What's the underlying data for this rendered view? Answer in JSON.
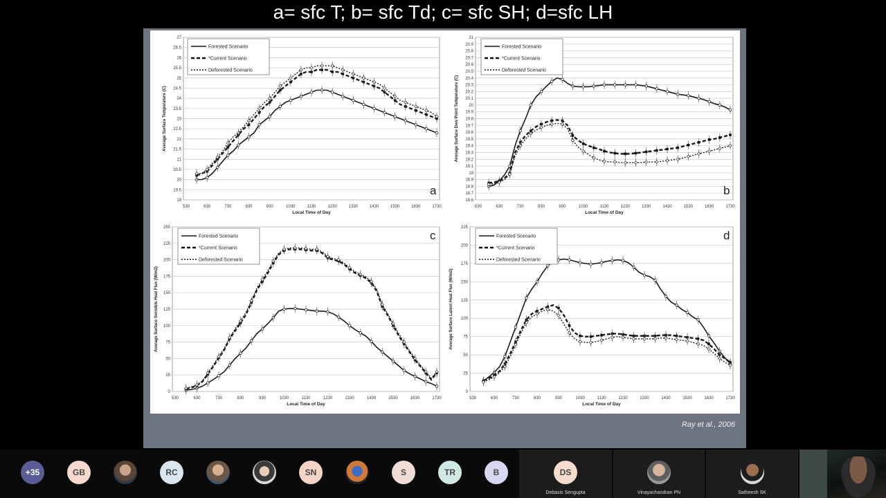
{
  "slide": {
    "title": "a= sfc T; b= sfc Td; c= sfc SH; d=sfc LH",
    "citation": "Ray et al., 2006"
  },
  "legend_labels": [
    "Forested Scenario",
    "*Current Scenario",
    "Deforested Scenario"
  ],
  "chart_data": [
    {
      "type": "line",
      "panel_label": "a",
      "xlabel": "Local Time of Day",
      "ylabel": "Average Surface Temperature (C)",
      "x_tick_labels": [
        "530",
        "630",
        "730",
        "830",
        "930",
        "1030",
        "1130",
        "1230",
        "1330",
        "1430",
        "1530",
        "1630",
        "1730"
      ],
      "y_tick_labels": [
        "19",
        "19.5",
        "20",
        "20.5",
        "21",
        "21.5",
        "22",
        "22.5",
        "23",
        "23.5",
        "24",
        "24.5",
        "25",
        "25.5",
        "26",
        "26.5",
        "27"
      ],
      "ylim": [
        19,
        27
      ],
      "x_hours": [
        6,
        6.25,
        6.5,
        6.75,
        7,
        7.25,
        7.5,
        7.75,
        8,
        8.25,
        8.5,
        8.75,
        9,
        9.25,
        9.5,
        9.75,
        10,
        10.25,
        10.5,
        10.75,
        11,
        11.25,
        11.5,
        11.75,
        12,
        12.25,
        12.5,
        12.75,
        13,
        13.25,
        13.5,
        13.75,
        14,
        14.25,
        14.5,
        14.75,
        15,
        15.25,
        15.5,
        15.75,
        16,
        16.25,
        16.5,
        16.75,
        17,
        17.25,
        17.5
      ],
      "series": [
        {
          "name": "Forested Scenario",
          "style": "solid-open",
          "values": [
            20.0,
            20.0,
            20.1,
            20.3,
            20.6,
            20.9,
            21.2,
            21.4,
            21.7,
            21.9,
            22.1,
            22.3,
            22.7,
            22.9,
            23.1,
            23.4,
            23.6,
            23.8,
            23.9,
            24.0,
            24.1,
            24.2,
            24.3,
            24.4,
            24.4,
            24.4,
            24.3,
            24.2,
            24.1,
            24.0,
            23.9,
            23.8,
            23.7,
            23.6,
            23.5,
            23.4,
            23.3,
            23.2,
            23.1,
            23.0,
            22.9,
            22.8,
            22.7,
            22.6,
            22.5,
            22.4,
            22.3
          ]
        },
        {
          "name": "*Current Scenario",
          "style": "dashed-filled",
          "values": [
            20.2,
            20.3,
            20.4,
            20.7,
            21.0,
            21.3,
            21.6,
            21.9,
            22.2,
            22.5,
            22.7,
            23.0,
            23.3,
            23.6,
            23.8,
            24.1,
            24.4,
            24.6,
            24.8,
            25.0,
            25.2,
            25.3,
            25.3,
            25.4,
            25.4,
            25.4,
            25.3,
            25.3,
            25.2,
            25.1,
            25.0,
            24.9,
            24.8,
            24.7,
            24.6,
            24.5,
            24.3,
            24.1,
            23.9,
            23.7,
            23.6,
            23.5,
            23.4,
            23.3,
            23.2,
            23.1,
            23.0
          ]
        },
        {
          "name": "Deforested Scenario",
          "style": "dotted-diamond",
          "values": [
            20.3,
            20.3,
            20.5,
            20.8,
            21.1,
            21.4,
            21.8,
            22.1,
            22.3,
            22.6,
            22.9,
            23.2,
            23.5,
            23.8,
            24.0,
            24.3,
            24.6,
            24.8,
            25.0,
            25.2,
            25.4,
            25.5,
            25.5,
            25.6,
            25.6,
            25.6,
            25.6,
            25.5,
            25.4,
            25.3,
            25.2,
            25.1,
            25.0,
            24.9,
            24.8,
            24.7,
            24.5,
            24.3,
            24.1,
            23.9,
            23.8,
            23.7,
            23.6,
            23.5,
            23.4,
            23.3,
            23.1
          ]
        }
      ]
    },
    {
      "type": "line",
      "panel_label": "b",
      "xlabel": "Local Time of Day",
      "ylabel": "Average Surface Dew Point Temperature (C)",
      "x_tick_labels": [
        "530",
        "630",
        "730",
        "830",
        "930",
        "1030",
        "1130",
        "1230",
        "1330",
        "1430",
        "1530",
        "1630",
        "1730"
      ],
      "y_tick_labels": [
        "18.6",
        "18.7",
        "18.8",
        "18.9",
        "19",
        "19.1",
        "19.2",
        "19.3",
        "19.4",
        "19.5",
        "19.6",
        "19.7",
        "19.8",
        "19.9",
        "20",
        "20.1",
        "20.2",
        "20.3",
        "20.4",
        "20.5",
        "20.6",
        "20.7",
        "20.8",
        "20.9",
        "21"
      ],
      "ylim": [
        18.6,
        21.0
      ],
      "x_hours": [
        6,
        6.25,
        6.5,
        6.75,
        7,
        7.25,
        7.5,
        7.75,
        8,
        8.25,
        8.5,
        8.75,
        9,
        9.25,
        9.5,
        9.75,
        10,
        10.25,
        10.5,
        10.75,
        11,
        11.25,
        11.5,
        11.75,
        12,
        12.25,
        12.5,
        12.75,
        13,
        13.25,
        13.5,
        13.75,
        14,
        14.25,
        14.5,
        14.75,
        15,
        15.25,
        15.5,
        15.75,
        16,
        16.25,
        16.5,
        16.75,
        17,
        17.25,
        17.5
      ],
      "series": [
        {
          "name": "Forested Scenario",
          "style": "solid-open",
          "values": [
            18.8,
            18.82,
            18.88,
            18.97,
            19.1,
            19.4,
            19.62,
            19.8,
            20.0,
            20.12,
            20.2,
            20.28,
            20.35,
            20.4,
            20.38,
            20.32,
            20.28,
            20.27,
            20.27,
            20.27,
            20.28,
            20.29,
            20.3,
            20.3,
            20.3,
            20.3,
            20.3,
            20.3,
            20.3,
            20.29,
            20.28,
            20.26,
            20.24,
            20.22,
            20.2,
            20.18,
            20.16,
            20.15,
            20.14,
            20.12,
            20.1,
            20.08,
            20.05,
            20.02,
            20.0,
            19.97,
            19.93
          ]
        },
        {
          "name": "*Current Scenario",
          "style": "dashed-filled",
          "values": [
            18.85,
            18.86,
            18.88,
            18.92,
            19.0,
            19.3,
            19.45,
            19.55,
            19.62,
            19.68,
            19.72,
            19.75,
            19.77,
            19.78,
            19.77,
            19.7,
            19.55,
            19.48,
            19.43,
            19.4,
            19.37,
            19.35,
            19.32,
            19.3,
            19.29,
            19.28,
            19.28,
            19.28,
            19.29,
            19.3,
            19.31,
            19.32,
            19.33,
            19.34,
            19.35,
            19.36,
            19.37,
            19.39,
            19.41,
            19.43,
            19.45,
            19.47,
            19.49,
            19.5,
            19.52,
            19.54,
            19.56
          ]
        },
        {
          "name": "Deforested Scenario",
          "style": "dotted-diamond",
          "values": [
            18.83,
            18.84,
            18.86,
            18.9,
            18.98,
            19.25,
            19.4,
            19.5,
            19.58,
            19.63,
            19.67,
            19.7,
            19.72,
            19.73,
            19.72,
            19.65,
            19.48,
            19.38,
            19.32,
            19.27,
            19.22,
            19.19,
            19.17,
            19.16,
            19.16,
            19.15,
            19.15,
            19.15,
            19.15,
            19.15,
            19.16,
            19.16,
            19.16,
            19.17,
            19.18,
            19.19,
            19.2,
            19.22,
            19.24,
            19.26,
            19.28,
            19.3,
            19.32,
            19.34,
            19.36,
            19.38,
            19.4
          ]
        }
      ]
    },
    {
      "type": "line",
      "panel_label": "c",
      "xlabel": "Local Time of Day",
      "ylabel": "Average Surface Sensible Heat Flux (W/m2)",
      "x_tick_labels": [
        "530",
        "630",
        "730",
        "830",
        "930",
        "1030",
        "1130",
        "1230",
        "1330",
        "1430",
        "1530",
        "1630",
        "1730"
      ],
      "y_tick_labels": [
        "0",
        "25",
        "50",
        "75",
        "100",
        "125",
        "150",
        "175",
        "200",
        "225",
        "250"
      ],
      "ylim": [
        0,
        250
      ],
      "x_hours": [
        6,
        6.25,
        6.5,
        6.75,
        7,
        7.25,
        7.5,
        7.75,
        8,
        8.25,
        8.5,
        8.75,
        9,
        9.25,
        9.5,
        9.75,
        10,
        10.25,
        10.5,
        10.75,
        11,
        11.25,
        11.5,
        11.75,
        12,
        12.25,
        12.5,
        12.75,
        13,
        13.25,
        13.5,
        13.75,
        14,
        14.25,
        14.5,
        14.75,
        15,
        15.25,
        15.5,
        15.75,
        16,
        16.25,
        16.5,
        16.75,
        17,
        17.25,
        17.5
      ],
      "series": [
        {
          "name": "Forested Scenario",
          "style": "solid-open",
          "values": [
            2,
            3,
            5,
            8,
            13,
            18,
            24,
            30,
            40,
            50,
            58,
            66,
            77,
            88,
            95,
            103,
            112,
            122,
            125,
            126,
            126,
            125,
            124,
            123,
            122,
            122,
            121,
            118,
            113,
            107,
            100,
            94,
            89,
            84,
            76,
            67,
            60,
            53,
            46,
            39,
            32,
            27,
            23,
            19,
            15,
            12,
            8
          ]
        },
        {
          "name": "*Current Scenario",
          "style": "dashed-filled",
          "values": [
            4,
            6,
            9,
            15,
            26,
            38,
            51,
            63,
            80,
            92,
            104,
            117,
            135,
            154,
            167,
            180,
            195,
            208,
            214,
            216,
            216,
            216,
            215,
            214,
            214,
            210,
            203,
            200,
            198,
            193,
            186,
            180,
            176,
            172,
            165,
            152,
            129,
            116,
            100,
            85,
            72,
            60,
            48,
            38,
            28,
            18,
            28
          ]
        },
        {
          "name": "Deforested Scenario",
          "style": "dotted-diamond",
          "values": [
            5,
            7,
            10,
            16,
            28,
            40,
            53,
            65,
            82,
            95,
            107,
            120,
            138,
            157,
            170,
            183,
            198,
            210,
            216,
            218,
            218,
            218,
            217,
            216,
            216,
            212,
            205,
            202,
            200,
            195,
            188,
            182,
            178,
            174,
            167,
            155,
            132,
            118,
            103,
            88,
            75,
            62,
            50,
            40,
            30,
            20,
            30
          ]
        }
      ]
    },
    {
      "type": "line",
      "panel_label": "d",
      "xlabel": "Local Time of Day",
      "ylabel": "Average Surface Latent Heat Flux (W/m2)",
      "x_tick_labels": [
        "530",
        "630",
        "730",
        "830",
        "930",
        "1030",
        "1130",
        "1230",
        "1330",
        "1430",
        "1530",
        "1630",
        "1730"
      ],
      "y_tick_labels": [
        "0",
        "25",
        "50",
        "75",
        "100",
        "125",
        "150",
        "175",
        "200",
        "225"
      ],
      "ylim": [
        0,
        225
      ],
      "x_hours": [
        6,
        6.25,
        6.5,
        6.75,
        7,
        7.25,
        7.5,
        7.75,
        8,
        8.25,
        8.5,
        8.75,
        9,
        9.25,
        9.5,
        9.75,
        10,
        10.25,
        10.5,
        10.75,
        11,
        11.25,
        11.5,
        11.75,
        12,
        12.25,
        12.5,
        12.75,
        13,
        13.25,
        13.5,
        13.75,
        14,
        14.25,
        14.5,
        14.75,
        15,
        15.25,
        15.5,
        15.75,
        16,
        16.25,
        16.5,
        16.75,
        17,
        17.25,
        17.5
      ],
      "series": [
        {
          "name": "Forested Scenario",
          "style": "solid-open",
          "values": [
            14,
            20,
            26,
            34,
            48,
            68,
            88,
            108,
            128,
            140,
            150,
            162,
            172,
            178,
            180,
            181,
            180,
            178,
            176,
            175,
            174,
            175,
            176,
            178,
            179,
            180,
            179,
            176,
            170,
            163,
            159,
            157,
            152,
            140,
            130,
            122,
            118,
            112,
            108,
            102,
            98,
            88,
            76,
            66,
            55,
            46,
            38
          ]
        },
        {
          "name": "*Current Scenario",
          "style": "dashed-filled",
          "values": [
            15,
            18,
            22,
            28,
            38,
            52,
            68,
            84,
            98,
            106,
            110,
            113,
            116,
            118,
            114,
            104,
            90,
            80,
            76,
            75,
            75,
            76,
            77,
            78,
            79,
            79,
            78,
            77,
            76,
            76,
            76,
            76,
            76,
            77,
            77,
            77,
            76,
            75,
            74,
            73,
            72,
            70,
            65,
            58,
            50,
            45,
            40
          ]
        },
        {
          "name": "Deforested Scenario",
          "style": "dotted-diamond",
          "values": [
            13,
            16,
            20,
            26,
            34,
            48,
            64,
            80,
            94,
            102,
            106,
            110,
            112,
            110,
            104,
            92,
            80,
            72,
            68,
            67,
            67,
            68,
            70,
            72,
            74,
            75,
            74,
            73,
            72,
            72,
            72,
            72,
            72,
            73,
            73,
            72,
            71,
            70,
            69,
            67,
            65,
            63,
            58,
            52,
            45,
            40,
            36
          ]
        }
      ]
    }
  ],
  "participants": {
    "more_count": "+35",
    "avatars": [
      "GB",
      "RC",
      "SN",
      "S",
      "TR",
      "B"
    ],
    "tiles": [
      {
        "initials": "DS",
        "name": "Debasis Sengupta"
      },
      {
        "initials": "",
        "name": "Vinayachandran PN"
      },
      {
        "initials": "",
        "name": "Satheesh SK"
      }
    ]
  }
}
